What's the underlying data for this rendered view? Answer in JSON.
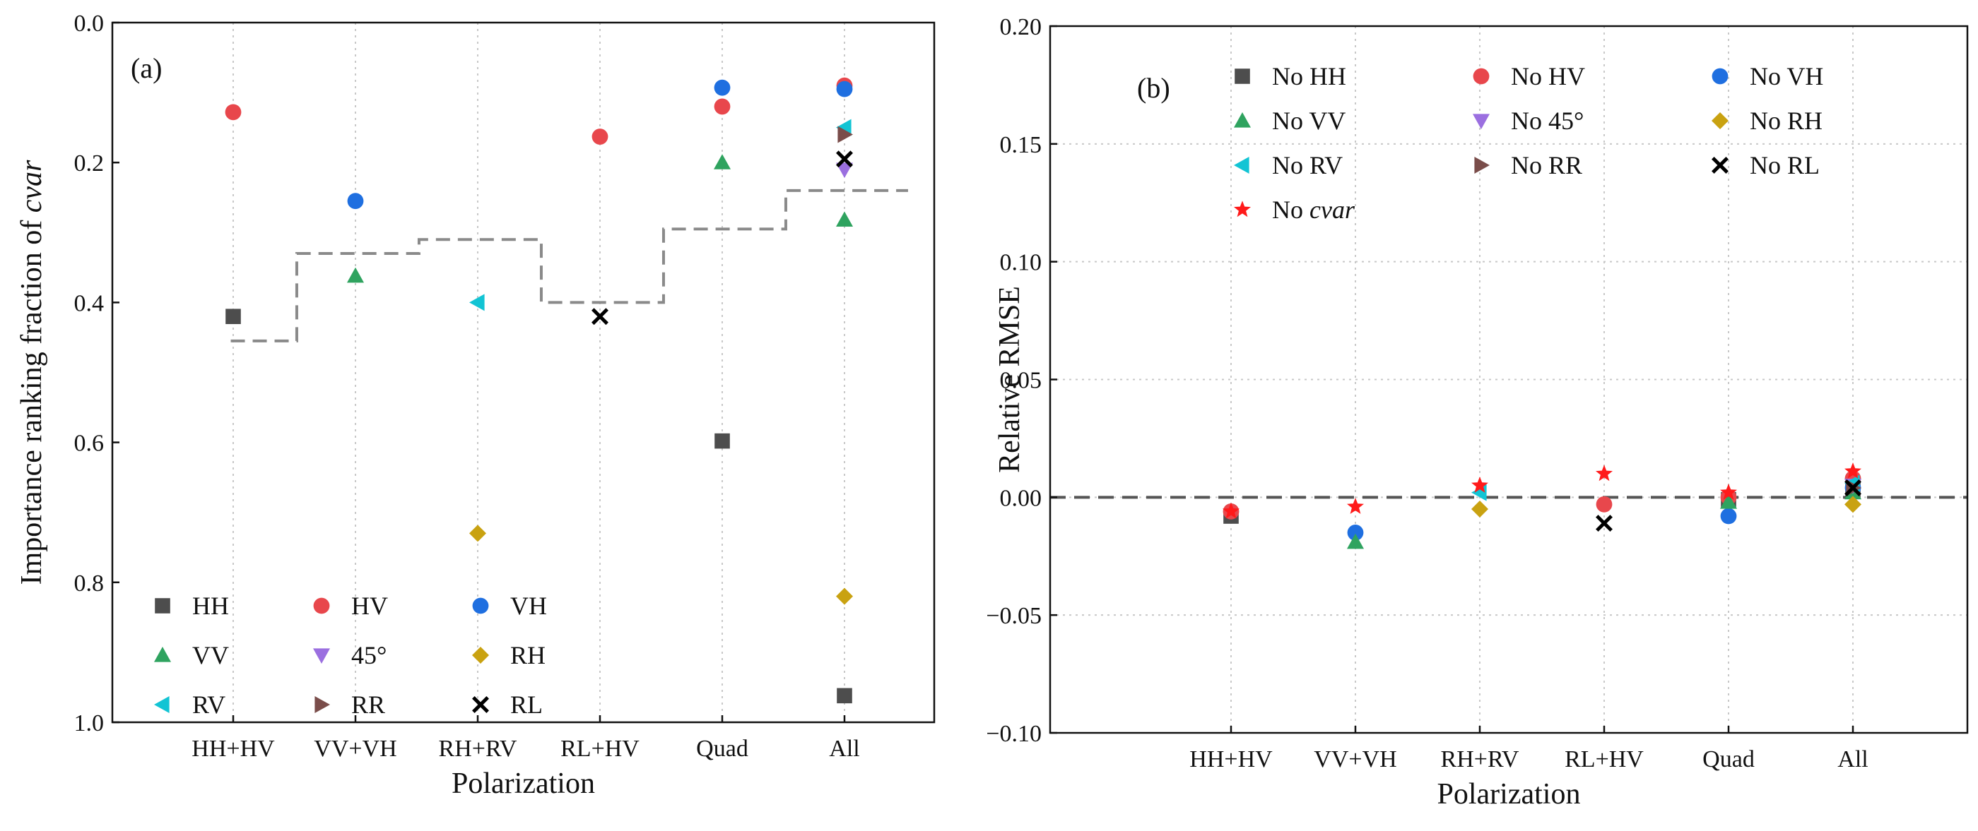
{
  "chart_data": [
    {
      "panel_label": "(a)",
      "type": "scatter",
      "xlabel": "Polarization",
      "ylabel_parts": [
        "Importance ranking fraction of ",
        "cvar"
      ],
      "categories": [
        "HH+HV",
        "VV+VH",
        "RH+RV",
        "RL+HV",
        "Quad",
        "All"
      ],
      "ylim": [
        0.0,
        1.0
      ],
      "y_inverted": true,
      "y_ticks": [
        "0.0",
        "0.2",
        "0.4",
        "0.6",
        "0.8",
        "1.0"
      ],
      "grid": "vertical dotted",
      "legend_position": "bottom-left",
      "step_line": {
        "style": "dashed gray",
        "values": [
          0.455,
          0.33,
          0.31,
          0.4,
          0.295,
          0.24
        ]
      },
      "series": [
        {
          "name": "HH",
          "marker": "square",
          "color": "#4d4d4d",
          "points": [
            [
              0,
              0.42
            ],
            [
              4,
              0.598
            ],
            [
              5,
              0.962
            ]
          ]
        },
        {
          "name": "HV",
          "marker": "circle",
          "color": "#e8474c",
          "points": [
            [
              0,
              0.128
            ],
            [
              3,
              0.163
            ],
            [
              4,
              0.12
            ],
            [
              5,
              0.09
            ]
          ]
        },
        {
          "name": "VH",
          "marker": "circle",
          "color": "#1f6fe0",
          "points": [
            [
              1,
              0.255
            ],
            [
              4,
              0.093
            ],
            [
              5,
              0.095
            ]
          ]
        },
        {
          "name": "VV",
          "marker": "triangle-up",
          "color": "#2fa35f",
          "points": [
            [
              1,
              0.362
            ],
            [
              4,
              0.2
            ],
            [
              5,
              0.282
            ]
          ]
        },
        {
          "name": "45°",
          "marker": "triangle-down",
          "color": "#9b6fe0",
          "points": [
            [
              5,
              0.21
            ]
          ]
        },
        {
          "name": "RH",
          "marker": "diamond",
          "color": "#c9a211",
          "points": [
            [
              2,
              0.73
            ],
            [
              5,
              0.82
            ]
          ]
        },
        {
          "name": "RV",
          "marker": "triangle-left",
          "color": "#12c4d4",
          "points": [
            [
              2,
              0.4
            ],
            [
              5,
              0.15
            ]
          ]
        },
        {
          "name": "RR",
          "marker": "triangle-right",
          "color": "#7a4d4a",
          "points": [
            [
              5,
              0.16
            ]
          ]
        },
        {
          "name": "RL",
          "marker": "x",
          "color": "#000000",
          "points": [
            [
              3,
              0.42
            ],
            [
              5,
              0.195
            ]
          ]
        }
      ]
    },
    {
      "panel_label": "(b)",
      "type": "scatter",
      "xlabel": "Polarization",
      "ylabel": "Relative RMSE",
      "categories": [
        "HH+HV",
        "VV+VH",
        "RH+RV",
        "RL+HV",
        "Quad",
        "All"
      ],
      "ylim": [
        -0.1,
        0.2
      ],
      "y_ticks": [
        "0.20",
        "0.15",
        "0.10",
        "0.05",
        "0.00",
        "−0.05",
        "−0.10"
      ],
      "grid": "vertical and horizontal dotted",
      "legend_position": "top-left",
      "reference_line": {
        "y": 0.0,
        "style": "dashed"
      },
      "series": [
        {
          "name": "No HH",
          "marker": "square",
          "color": "#4d4d4d",
          "points": [
            [
              0,
              -0.008
            ],
            [
              4,
              -0.001
            ],
            [
              5,
              0.003
            ]
          ]
        },
        {
          "name": "No HV",
          "marker": "circle",
          "color": "#e8474c",
          "points": [
            [
              0,
              -0.006
            ],
            [
              3,
              -0.003
            ],
            [
              4,
              0.0
            ],
            [
              5,
              0.008
            ]
          ]
        },
        {
          "name": "No VH",
          "marker": "circle",
          "color": "#1f6fe0",
          "points": [
            [
              1,
              -0.015
            ],
            [
              4,
              -0.008
            ],
            [
              5,
              0.004
            ]
          ]
        },
        {
          "name": "No VV",
          "marker": "triangle-up",
          "color": "#2fa35f",
          "points": [
            [
              1,
              -0.019
            ],
            [
              4,
              -0.002
            ],
            [
              5,
              0.002
            ]
          ]
        },
        {
          "name": "No 45°",
          "marker": "triangle-down",
          "color": "#9b6fe0",
          "points": [
            [
              5,
              0.005
            ]
          ]
        },
        {
          "name": "No RH",
          "marker": "diamond",
          "color": "#c9a211",
          "points": [
            [
              2,
              -0.005
            ],
            [
              5,
              -0.003
            ]
          ]
        },
        {
          "name": "No RV",
          "marker": "triangle-left",
          "color": "#12c4d4",
          "points": [
            [
              2,
              0.002
            ],
            [
              5,
              0.006
            ]
          ]
        },
        {
          "name": "No RR",
          "marker": "triangle-right",
          "color": "#7a4d4a",
          "points": [
            [
              5,
              0.004
            ]
          ]
        },
        {
          "name": "No RL",
          "marker": "x",
          "color": "#000000",
          "points": [
            [
              3,
              -0.011
            ],
            [
              5,
              0.004
            ]
          ]
        },
        {
          "name_parts": [
            "No ",
            "cvar"
          ],
          "name": "No cvar",
          "marker": "star",
          "color": "#ff1a1a",
          "points": [
            [
              0,
              -0.006
            ],
            [
              1,
              -0.004
            ],
            [
              2,
              0.005
            ],
            [
              3,
              0.01
            ],
            [
              4,
              0.002
            ],
            [
              5,
              0.011
            ]
          ]
        }
      ]
    }
  ]
}
